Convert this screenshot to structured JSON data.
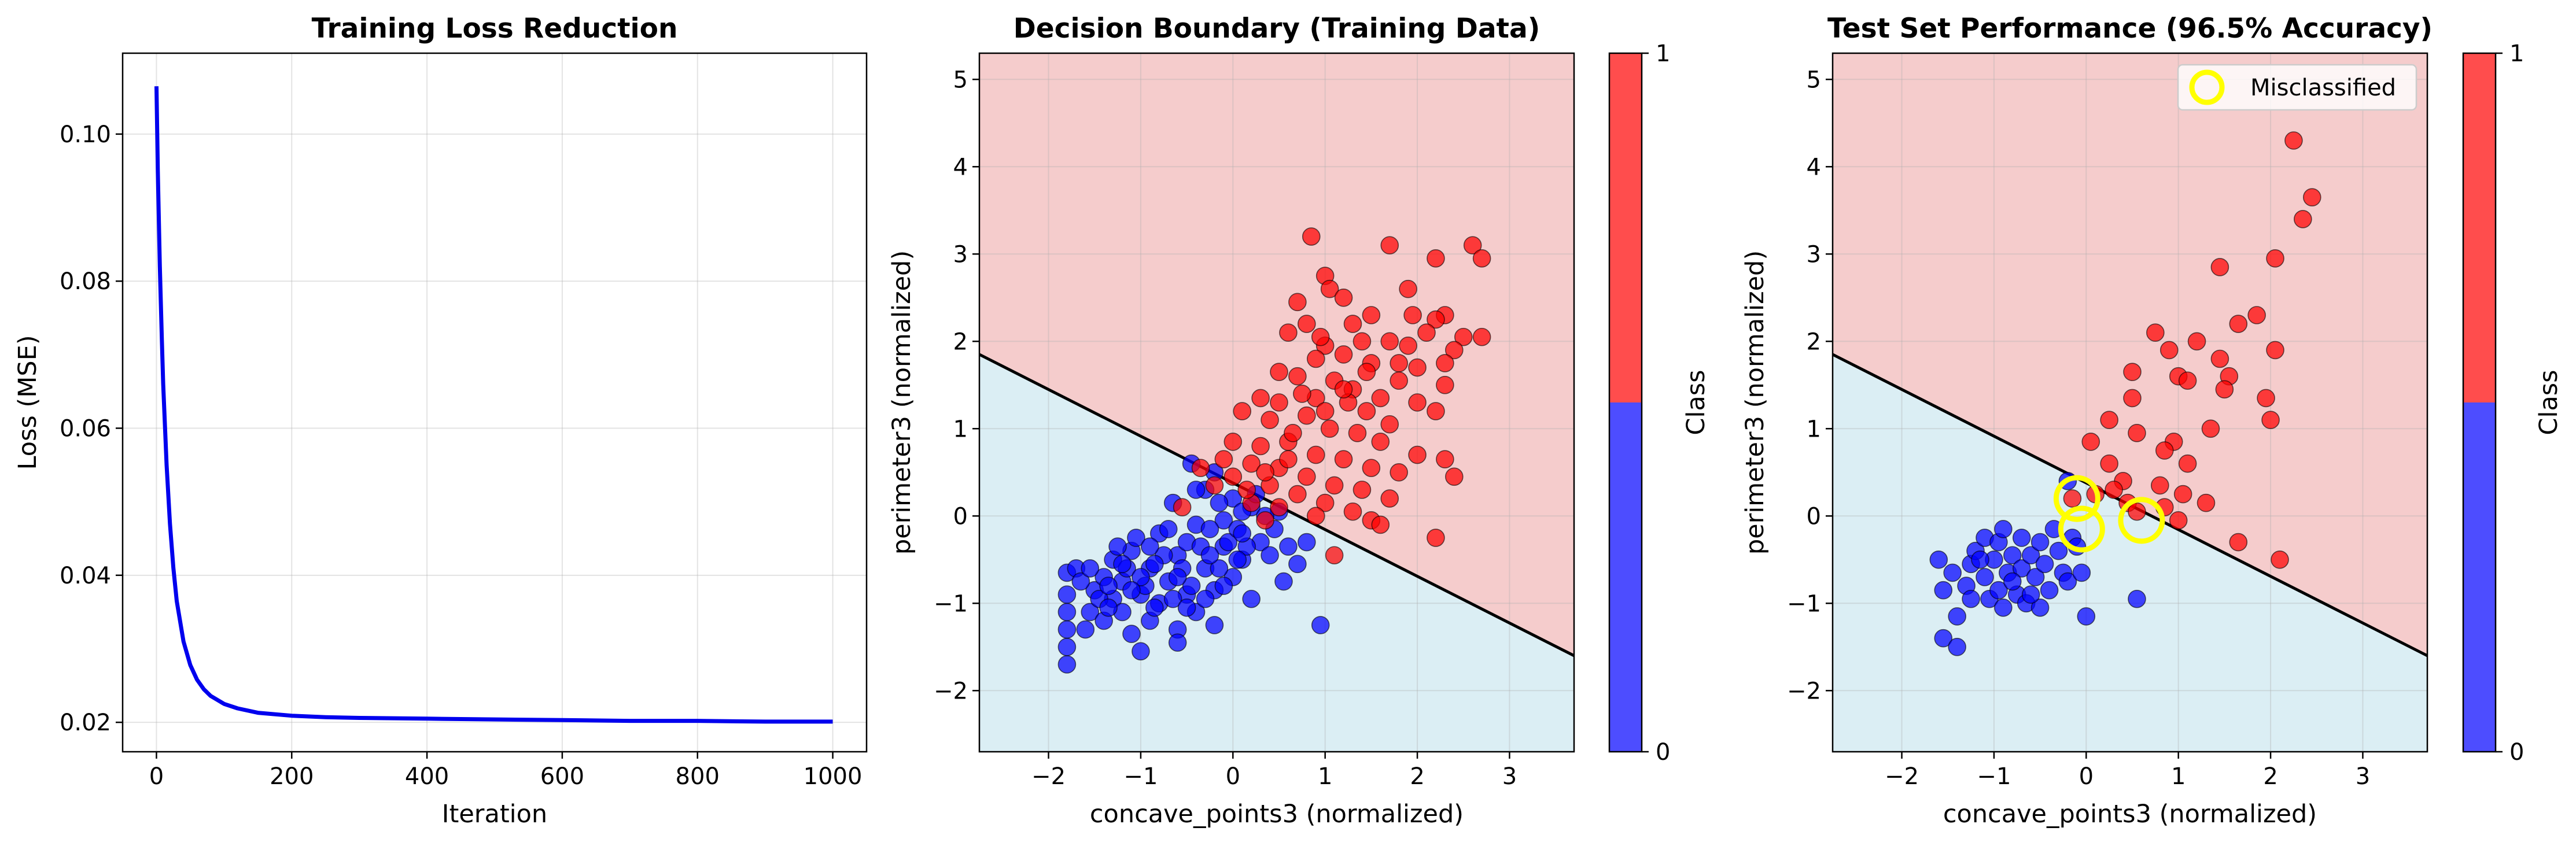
{
  "chart_data": [
    {
      "type": "line",
      "title": "Training Loss Reduction",
      "xlabel": "Iteration",
      "ylabel": "Loss (MSE)",
      "xlim": [
        -50,
        1050
      ],
      "ylim": [
        0.016,
        0.111
      ],
      "xticks": [
        0,
        200,
        400,
        600,
        800,
        1000
      ],
      "xtick_labels": [
        "0",
        "200",
        "400",
        "600",
        "800",
        "1000"
      ],
      "yticks": [
        0.02,
        0.04,
        0.06,
        0.08,
        0.1
      ],
      "ytick_labels": [
        "0.02",
        "0.04",
        "0.06",
        "0.08",
        "0.10"
      ],
      "grid": true,
      "line_color": "#0000ee",
      "series": [
        {
          "x": [
            0,
            2,
            5,
            8,
            10,
            15,
            20,
            25,
            30,
            40,
            50,
            60,
            70,
            80,
            100,
            120,
            150,
            200,
            250,
            300,
            400,
            500,
            600,
            700,
            800,
            900,
            1000
          ],
          "values": [
            0.1065,
            0.095,
            0.082,
            0.072,
            0.066,
            0.055,
            0.047,
            0.041,
            0.0365,
            0.031,
            0.0278,
            0.0258,
            0.0245,
            0.0236,
            0.0225,
            0.0219,
            0.0213,
            0.0209,
            0.0207,
            0.0206,
            0.0205,
            0.0204,
            0.0203,
            0.0202,
            0.0202,
            0.0201,
            0.0201
          ]
        }
      ]
    },
    {
      "type": "scatter",
      "title": "Decision Boundary (Training Data)",
      "xlabel": "concave_points3 (normalized)",
      "ylabel": "perimeter3 (normalized)",
      "xlim": [
        -2.75,
        3.7
      ],
      "ylim": [
        -2.7,
        5.3
      ],
      "xticks": [
        -2,
        -1,
        0,
        1,
        2,
        3
      ],
      "xtick_labels": [
        "−2",
        "−1",
        "0",
        "1",
        "2",
        "3"
      ],
      "yticks": [
        -2,
        -1,
        0,
        1,
        2,
        3,
        4,
        5
      ],
      "ytick_labels": [
        "−2",
        "−1",
        "0",
        "1",
        "2",
        "3",
        "4",
        "5"
      ],
      "grid": true,
      "boundary": {
        "x": [
          -2.75,
          3.7
        ],
        "y": [
          1.85,
          -1.6
        ]
      },
      "region_colors": {
        "class_1": "#f5cccc",
        "class_0": "#dbeef4"
      },
      "colorbar": {
        "label": "Class",
        "ticks": [
          "0",
          "1"
        ],
        "split": 0.5,
        "colors": {
          "class_1": "#ff4d4d",
          "class_0": "#4d4dff"
        }
      },
      "class_colors": {
        "0": "#0000ff",
        "1": "#ff0000"
      },
      "points_class_1": [
        [
          0.85,
          3.2
        ],
        [
          1.0,
          2.75
        ],
        [
          1.05,
          2.6
        ],
        [
          1.7,
          3.1
        ],
        [
          2.6,
          3.1
        ],
        [
          2.7,
          2.95
        ],
        [
          2.2,
          2.95
        ],
        [
          1.9,
          2.6
        ],
        [
          0.7,
          2.45
        ],
        [
          1.2,
          2.5
        ],
        [
          0.8,
          2.2
        ],
        [
          1.3,
          2.2
        ],
        [
          1.5,
          2.3
        ],
        [
          2.3,
          2.3
        ],
        [
          2.2,
          2.25
        ],
        [
          2.1,
          2.1
        ],
        [
          2.5,
          2.05
        ],
        [
          2.7,
          2.05
        ],
        [
          2.4,
          1.9
        ],
        [
          1.9,
          1.95
        ],
        [
          1.7,
          2.0
        ],
        [
          1.4,
          2.0
        ],
        [
          1.0,
          1.95
        ],
        [
          0.6,
          2.1
        ],
        [
          0.9,
          1.8
        ],
        [
          1.2,
          1.85
        ],
        [
          1.5,
          1.75
        ],
        [
          1.8,
          1.75
        ],
        [
          2.0,
          1.7
        ],
        [
          0.5,
          1.65
        ],
        [
          0.7,
          1.6
        ],
        [
          1.1,
          1.55
        ],
        [
          1.3,
          1.45
        ],
        [
          1.6,
          1.35
        ],
        [
          2.0,
          1.3
        ],
        [
          2.3,
          1.5
        ],
        [
          2.2,
          1.2
        ],
        [
          0.3,
          1.35
        ],
        [
          0.5,
          1.3
        ],
        [
          0.9,
          1.35
        ],
        [
          1.25,
          1.3
        ],
        [
          1.45,
          1.2
        ],
        [
          1.7,
          1.05
        ],
        [
          0.1,
          1.2
        ],
        [
          0.4,
          1.1
        ],
        [
          0.8,
          1.15
        ],
        [
          1.05,
          1.0
        ],
        [
          1.35,
          0.95
        ],
        [
          1.6,
          0.85
        ],
        [
          2.0,
          0.7
        ],
        [
          2.3,
          0.65
        ],
        [
          1.8,
          0.5
        ],
        [
          2.4,
          0.45
        ],
        [
          0.0,
          0.85
        ],
        [
          0.3,
          0.8
        ],
        [
          0.6,
          0.85
        ],
        [
          0.9,
          0.7
        ],
        [
          1.2,
          0.65
        ],
        [
          1.5,
          0.55
        ],
        [
          -0.1,
          0.65
        ],
        [
          0.2,
          0.6
        ],
        [
          0.5,
          0.55
        ],
        [
          0.8,
          0.45
        ],
        [
          1.1,
          0.35
        ],
        [
          1.4,
          0.3
        ],
        [
          1.7,
          0.2
        ],
        [
          0.0,
          0.45
        ],
        [
          0.4,
          0.35
        ],
        [
          0.7,
          0.25
        ],
        [
          1.0,
          0.15
        ],
        [
          1.3,
          0.05
        ],
        [
          1.5,
          -0.05
        ],
        [
          0.2,
          0.15
        ],
        [
          0.5,
          0.1
        ],
        [
          0.9,
          0.0
        ],
        [
          1.6,
          -0.1
        ],
        [
          1.1,
          -0.45
        ],
        [
          2.2,
          -0.25
        ],
        [
          0.6,
          0.65
        ],
        [
          1.0,
          1.2
        ],
        [
          1.2,
          1.45
        ],
        [
          1.8,
          1.55
        ],
        [
          -0.35,
          0.55
        ],
        [
          -0.2,
          0.35
        ],
        [
          0.15,
          0.3
        ],
        [
          0.35,
          0.5
        ],
        [
          0.65,
          0.95
        ],
        [
          0.75,
          1.4
        ],
        [
          1.45,
          1.65
        ],
        [
          1.95,
          2.3
        ],
        [
          2.3,
          1.75
        ],
        [
          0.95,
          2.05
        ],
        [
          -0.55,
          0.1
        ],
        [
          0.35,
          -0.05
        ]
      ],
      "points_class_0": [
        [
          -1.8,
          -1.7
        ],
        [
          -1.8,
          -1.5
        ],
        [
          -1.8,
          -1.3
        ],
        [
          -1.8,
          -1.1
        ],
        [
          -1.8,
          -0.9
        ],
        [
          -1.8,
          -0.65
        ],
        [
          -1.7,
          -0.6
        ],
        [
          -1.5,
          -0.85
        ],
        [
          -1.55,
          -1.1
        ],
        [
          -1.6,
          -1.3
        ],
        [
          -1.4,
          -1.2
        ],
        [
          -1.4,
          -0.7
        ],
        [
          -1.3,
          -0.5
        ],
        [
          -1.3,
          -0.95
        ],
        [
          -1.2,
          -1.1
        ],
        [
          -1.2,
          -0.75
        ],
        [
          -1.1,
          -1.35
        ],
        [
          -1.1,
          -0.4
        ],
        [
          -1.0,
          -0.9
        ],
        [
          -1.0,
          -1.55
        ],
        [
          -0.9,
          -1.2
        ],
        [
          -0.9,
          -0.6
        ],
        [
          -0.8,
          -0.2
        ],
        [
          -0.8,
          -1.0
        ],
        [
          -0.7,
          -0.75
        ],
        [
          -0.6,
          -1.3
        ],
        [
          -0.6,
          -1.45
        ],
        [
          -0.6,
          -0.45
        ],
        [
          -0.5,
          -0.3
        ],
        [
          -0.5,
          -0.9
        ],
        [
          -0.4,
          -1.1
        ],
        [
          -0.4,
          -0.1
        ],
        [
          -0.3,
          -0.6
        ],
        [
          -0.2,
          -0.85
        ],
        [
          -0.2,
          -1.25
        ],
        [
          -0.1,
          -0.35
        ],
        [
          -0.1,
          -0.05
        ],
        [
          0.0,
          -0.7
        ],
        [
          0.0,
          0.2
        ],
        [
          0.1,
          -0.5
        ],
        [
          0.2,
          -0.95
        ],
        [
          0.2,
          0.1
        ],
        [
          0.3,
          -0.3
        ],
        [
          0.4,
          -0.45
        ],
        [
          0.5,
          0.05
        ],
        [
          0.55,
          -0.75
        ],
        [
          0.7,
          -0.55
        ],
        [
          0.8,
          -0.3
        ],
        [
          0.95,
          -1.25
        ],
        [
          -0.45,
          0.6
        ],
        [
          -0.3,
          0.3
        ],
        [
          -0.15,
          0.15
        ],
        [
          0.25,
          0.25
        ],
        [
          -1.25,
          -0.35
        ],
        [
          -1.15,
          -0.6
        ],
        [
          -1.05,
          -0.25
        ],
        [
          -0.95,
          -0.8
        ],
        [
          -0.85,
          -1.05
        ],
        [
          -0.75,
          -0.45
        ],
        [
          -0.65,
          -0.95
        ],
        [
          -0.55,
          -0.6
        ],
        [
          -0.45,
          -0.8
        ],
        [
          -0.35,
          -0.35
        ],
        [
          -0.25,
          -0.15
        ],
        [
          -0.15,
          -0.6
        ],
        [
          -0.05,
          -0.3
        ],
        [
          0.05,
          -0.15
        ],
        [
          0.15,
          -0.35
        ],
        [
          0.35,
          0.0
        ],
        [
          0.45,
          -0.15
        ],
        [
          0.6,
          -0.35
        ],
        [
          -1.65,
          -0.75
        ],
        [
          -1.45,
          -0.95
        ],
        [
          -1.35,
          -1.05
        ],
        [
          -1.2,
          -0.55
        ],
        [
          -1.0,
          -0.7
        ],
        [
          -0.9,
          -0.35
        ],
        [
          -0.7,
          -0.15
        ],
        [
          -0.6,
          -0.7
        ],
        [
          -0.5,
          -1.05
        ],
        [
          -0.3,
          -0.95
        ],
        [
          -0.25,
          -0.45
        ],
        [
          -0.1,
          -0.8
        ],
        [
          0.05,
          -0.5
        ],
        [
          0.1,
          0.05
        ],
        [
          -0.4,
          0.3
        ],
        [
          -0.65,
          0.15
        ],
        [
          -0.85,
          -0.55
        ],
        [
          -1.1,
          -0.85
        ],
        [
          -1.35,
          -0.8
        ],
        [
          -1.55,
          -0.6
        ],
        [
          -0.2,
          0.5
        ],
        [
          0.1,
          -0.2
        ]
      ]
    },
    {
      "type": "scatter",
      "title": "Test Set Performance (96.5% Accuracy)",
      "xlabel": "concave_points3 (normalized)",
      "ylabel": "perimeter3 (normalized)",
      "xlim": [
        -2.75,
        3.7
      ],
      "ylim": [
        -2.7,
        5.3
      ],
      "xticks": [
        -2,
        -1,
        0,
        1,
        2,
        3
      ],
      "xtick_labels": [
        "−2",
        "−1",
        "0",
        "1",
        "2",
        "3"
      ],
      "yticks": [
        -2,
        -1,
        0,
        1,
        2,
        3,
        4,
        5
      ],
      "ytick_labels": [
        "−2",
        "−1",
        "0",
        "1",
        "2",
        "3",
        "4",
        "5"
      ],
      "grid": true,
      "boundary": {
        "x": [
          -2.75,
          3.7
        ],
        "y": [
          1.85,
          -1.6
        ]
      },
      "region_colors": {
        "class_1": "#f5cccc",
        "class_0": "#dbeef4"
      },
      "colorbar": {
        "label": "Class",
        "ticks": [
          "0",
          "1"
        ],
        "split": 0.5,
        "colors": {
          "class_1": "#ff4d4d",
          "class_0": "#4d4dff"
        }
      },
      "class_colors": {
        "0": "#0000ff",
        "1": "#ff0000"
      },
      "legend": {
        "label": "Misclassified",
        "position": "top-right",
        "marker_color": "#ffff00"
      },
      "points_class_1": [
        [
          2.25,
          4.3
        ],
        [
          2.45,
          3.65
        ],
        [
          2.35,
          3.4
        ],
        [
          1.45,
          2.85
        ],
        [
          2.05,
          2.95
        ],
        [
          1.85,
          2.3
        ],
        [
          1.65,
          2.2
        ],
        [
          0.75,
          2.1
        ],
        [
          1.2,
          2.0
        ],
        [
          0.9,
          1.9
        ],
        [
          2.05,
          1.9
        ],
        [
          0.5,
          1.65
        ],
        [
          1.0,
          1.6
        ],
        [
          1.55,
          1.6
        ],
        [
          1.5,
          1.45
        ],
        [
          1.45,
          1.8
        ],
        [
          1.1,
          1.55
        ],
        [
          0.5,
          1.35
        ],
        [
          1.95,
          1.35
        ],
        [
          0.25,
          1.1
        ],
        [
          2.0,
          1.1
        ],
        [
          0.55,
          0.95
        ],
        [
          0.95,
          0.85
        ],
        [
          1.35,
          1.0
        ],
        [
          0.05,
          0.85
        ],
        [
          0.25,
          0.6
        ],
        [
          0.85,
          0.75
        ],
        [
          1.1,
          0.6
        ],
        [
          0.4,
          0.4
        ],
        [
          0.8,
          0.35
        ],
        [
          1.05,
          0.25
        ],
        [
          1.3,
          0.15
        ],
        [
          0.1,
          0.25
        ],
        [
          0.45,
          0.15
        ],
        [
          0.55,
          0.05
        ],
        [
          1.0,
          -0.05
        ],
        [
          1.65,
          -0.3
        ],
        [
          2.1,
          -0.5
        ],
        [
          -0.15,
          0.2
        ],
        [
          0.3,
          0.3
        ],
        [
          0.85,
          0.1
        ]
      ],
      "points_class_0": [
        [
          -1.6,
          -0.5
        ],
        [
          -1.55,
          -0.85
        ],
        [
          -1.55,
          -1.4
        ],
        [
          -1.45,
          -0.65
        ],
        [
          -1.4,
          -1.15
        ],
        [
          -1.4,
          -1.5
        ],
        [
          -1.3,
          -0.8
        ],
        [
          -1.25,
          -0.55
        ],
        [
          -1.25,
          -0.95
        ],
        [
          -1.2,
          -0.4
        ],
        [
          -1.1,
          -0.25
        ],
        [
          -1.1,
          -0.7
        ],
        [
          -1.05,
          -0.95
        ],
        [
          -1.0,
          -0.5
        ],
        [
          -0.95,
          -0.3
        ],
        [
          -0.95,
          -0.85
        ],
        [
          -0.9,
          -1.05
        ],
        [
          -0.85,
          -0.65
        ],
        [
          -0.8,
          -0.45
        ],
        [
          -0.75,
          -0.9
        ],
        [
          -0.7,
          -0.25
        ],
        [
          -0.7,
          -0.6
        ],
        [
          -0.65,
          -1.0
        ],
        [
          -0.6,
          -0.45
        ],
        [
          -0.55,
          -0.7
        ],
        [
          -0.5,
          -0.3
        ],
        [
          -0.45,
          -0.55
        ],
        [
          -0.4,
          -0.85
        ],
        [
          -0.35,
          -0.15
        ],
        [
          -0.3,
          -0.4
        ],
        [
          -0.25,
          -0.65
        ],
        [
          -0.2,
          -0.75
        ],
        [
          -0.15,
          -0.25
        ],
        [
          -0.1,
          -0.35
        ],
        [
          -0.05,
          -0.65
        ],
        [
          0.0,
          -1.15
        ],
        [
          -0.5,
          -1.05
        ],
        [
          -0.9,
          -0.15
        ],
        [
          -0.2,
          0.4
        ],
        [
          0.55,
          -0.95
        ],
        [
          -0.8,
          -0.75
        ],
        [
          -0.6,
          -0.9
        ],
        [
          -1.15,
          -0.5
        ]
      ],
      "misclassified": [
        [
          -0.1,
          0.2
        ],
        [
          -0.05,
          -0.15
        ],
        [
          0.6,
          -0.05
        ]
      ]
    }
  ]
}
